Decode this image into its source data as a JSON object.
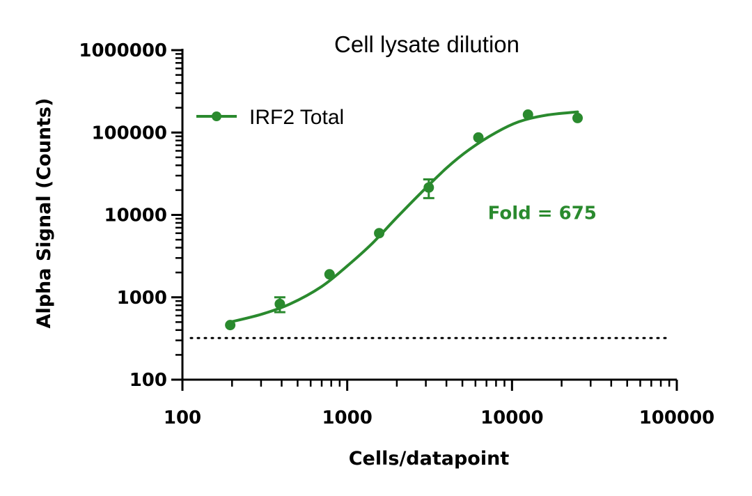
{
  "chart_data": {
    "type": "scatter",
    "title": "Cell lysate dilution",
    "xlabel": "Cells/datapoint",
    "ylabel": "Alpha Signal (Counts)",
    "x_scale": "log",
    "y_scale": "log",
    "xlim": [
      100,
      100000
    ],
    "ylim": [
      100,
      1000000
    ],
    "x_ticks": [
      "100",
      "1000",
      "10000",
      "100000"
    ],
    "y_ticks": [
      "100",
      "1000",
      "10000",
      "100000",
      "1000000"
    ],
    "grid": false,
    "legend_position": "top-left",
    "series": [
      {
        "name": "IRF2 Total",
        "color": "#2a8a2e",
        "x": [
          195,
          390,
          781,
          1563,
          3125,
          6250,
          12500,
          25000
        ],
        "y": [
          460,
          830,
          1900,
          6000,
          21500,
          87000,
          165000,
          150000
        ],
        "error": [
          null,
          170,
          null,
          null,
          5500,
          null,
          null,
          null
        ],
        "fit": {
          "type": "sigmoidal",
          "x": [
            195,
            300,
            450,
            700,
            1000,
            1400,
            2000,
            2800,
            4000,
            5500,
            8000,
            11000,
            16000,
            25000
          ],
          "y": [
            500,
            620,
            830,
            1350,
            2400,
            4400,
            9300,
            18500,
            37000,
            62000,
            100000,
            135000,
            162000,
            178000
          ]
        }
      }
    ],
    "background_line": {
      "y": 320,
      "style": "dotted",
      "x_range": [
        100,
        100000
      ]
    },
    "annotations": [
      {
        "text": "Fold = 675",
        "x": 16000,
        "y": 10000,
        "color": "#2a8a2e"
      }
    ]
  }
}
